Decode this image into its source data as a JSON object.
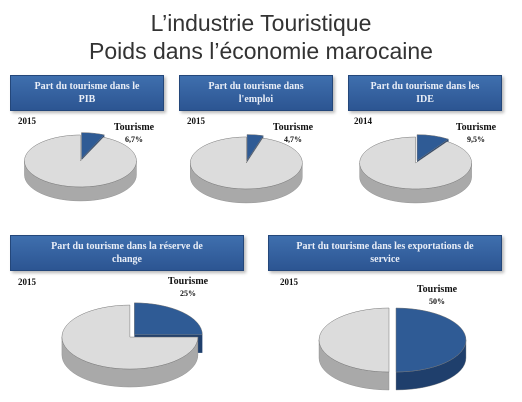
{
  "title_line1": "L’industrie Touristique",
  "title_line2": "Poids dans l’économie marocaine",
  "colors": {
    "tourism": "#2f5b95",
    "tourism_dark": "#1f3f6c",
    "rest": "#dcdcdc",
    "rest_dark": "#a9a9a9"
  },
  "chart_data": [
    {
      "type": "pie",
      "title_lines": [
        "Part du tourisme dans le",
        "PIB"
      ],
      "year": "2015",
      "label": "Tourisme",
      "value_text": "6,7%",
      "values": [
        6.7,
        93.3
      ]
    },
    {
      "type": "pie",
      "title_lines": [
        "Part du tourisme dans",
        "l'emploi"
      ],
      "year": "2015",
      "label": "Tourisme",
      "value_text": "4,7%",
      "values": [
        4.7,
        95.3
      ]
    },
    {
      "type": "pie",
      "title_lines": [
        "Part du tourisme dans les",
        "IDE"
      ],
      "year": "2014",
      "label": "Tourisme",
      "value_text": "9,5%",
      "values": [
        9.5,
        90.5
      ]
    },
    {
      "type": "pie",
      "title_lines": [
        "Part du tourisme dans la réserve de",
        "change"
      ],
      "year": "2015",
      "label": "Tourisme",
      "value_text": "25%",
      "values": [
        25,
        75
      ]
    },
    {
      "type": "pie",
      "title_lines": [
        "Part du tourisme dans les exportations de",
        "service"
      ],
      "year": "2015",
      "label": "Tourisme",
      "value_text": "50%",
      "values": [
        50,
        50
      ]
    }
  ]
}
